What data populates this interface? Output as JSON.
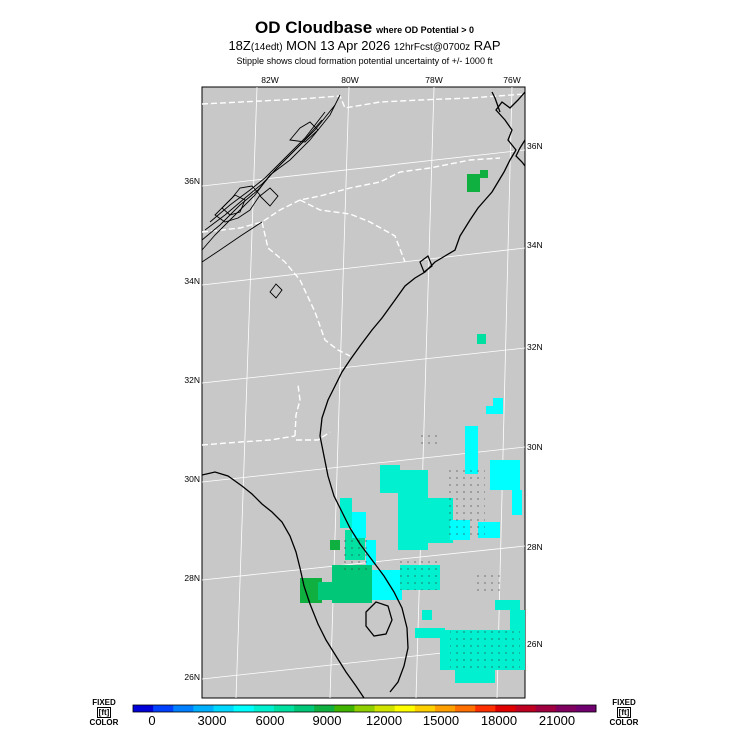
{
  "header": {
    "title": "OD Cloudbase",
    "title_note": "where OD Potential > 0",
    "subtitle_time": "18Z",
    "subtitle_local": "(14edt)",
    "subtitle_date": "MON 13 Apr 2026",
    "subtitle_fcst": "12hrFcst@0700z",
    "subtitle_model": "RAP",
    "stipple_note": "Stipple shows cloud formation potential uncertainty of +/- 1000 ft"
  },
  "map": {
    "background_color": "#c8c8c8",
    "coast_color": "#000000",
    "state_border_color": "#ffffff",
    "grid_color": "#ffffff",
    "lon_labels": [
      "82W",
      "80W",
      "78W",
      "76W"
    ],
    "lat_labels_left": [
      "36N",
      "34N",
      "32N",
      "30N",
      "28N",
      "26N"
    ],
    "lat_labels_right": [
      "36N",
      "34N",
      "32N",
      "30N",
      "28N",
      "26N"
    ]
  },
  "colorbar": {
    "left_label_top": "FIXED",
    "left_label_unit": "[ft]",
    "left_label_bottom": "COLOR",
    "right_label_top": "FIXED",
    "right_label_unit": "[ft]",
    "right_label_bottom": "COLOR",
    "tick_labels": [
      "0",
      "3000",
      "6000",
      "9000",
      "12000",
      "15000",
      "18000",
      "21000"
    ],
    "colors": [
      "#0000d8",
      "#0040ff",
      "#0080ff",
      "#00b0ff",
      "#00d8ff",
      "#00ffff",
      "#00f0d0",
      "#00e0a0",
      "#00c878",
      "#10b040",
      "#40b400",
      "#90d000",
      "#d0e400",
      "#ffff00",
      "#ffd000",
      "#ffa000",
      "#ff7000",
      "#ff3000",
      "#e00000",
      "#c00020",
      "#a00040",
      "#800060",
      "#700070"
    ]
  }
}
